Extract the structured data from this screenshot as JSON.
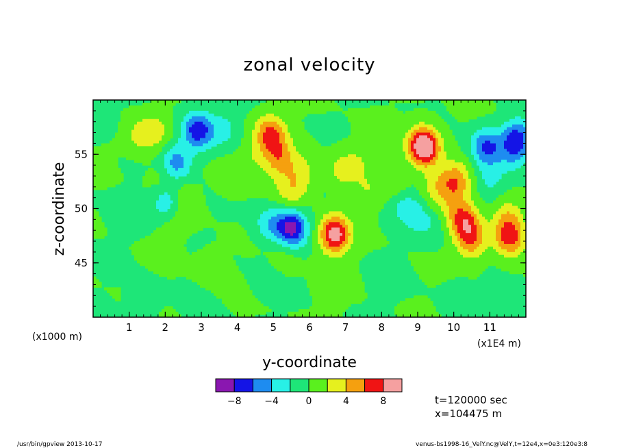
{
  "chart_data": {
    "type": "heatmap",
    "title": "zonal velocity",
    "xlabel": "y-coordinate",
    "ylabel": "z-coordinate",
    "x_scale_note": "(x1E4 m)",
    "y_scale_note": "(x1000 m)",
    "xlim": [
      0.0,
      12.0
    ],
    "ylim": [
      40.0,
      60.0
    ],
    "x_ticks": [
      "1",
      "2",
      "3",
      "4",
      "5",
      "6",
      "7",
      "8",
      "9",
      "10",
      "11"
    ],
    "y_ticks": [
      "45",
      "50",
      "55"
    ],
    "levels": [
      -10,
      -8,
      -6,
      -4,
      -2,
      0,
      2,
      4,
      6,
      8,
      10
    ],
    "colorbar_labels": [
      "-8",
      "-4",
      "0",
      "4",
      "8"
    ],
    "colors": [
      "#8a17b0",
      "#1414e6",
      "#1e8cf0",
      "#28f0e6",
      "#1ee678",
      "#5af01e",
      "#e6f01e",
      "#f5a00f",
      "#f01414",
      "#f5a0a0"
    ],
    "background_color": "#1ee678",
    "features": [
      {
        "y": 0.25,
        "z": 57.5,
        "value": -2.5
      },
      {
        "y": 0.3,
        "z": 56.5,
        "value": 1.2
      },
      {
        "y": 1.3,
        "z": 56.7,
        "value": 2.4
      },
      {
        "y": 1.75,
        "z": 57.3,
        "value": 2.8
      },
      {
        "y": 2.0,
        "z": 52.8,
        "value": 1.8
      },
      {
        "y": 2.1,
        "z": 50.6,
        "value": -5.5
      },
      {
        "y": 2.4,
        "z": 50.8,
        "value": 3.0
      },
      {
        "y": 2.3,
        "z": 54.2,
        "value": -5.5
      },
      {
        "y": 2.9,
        "z": 57.2,
        "value": -7.6
      },
      {
        "y": 2.2,
        "z": 49.0,
        "value": 1.4
      },
      {
        "y": 3.6,
        "z": 57.4,
        "value": -2.5
      },
      {
        "y": 3.8,
        "z": 53.0,
        "value": 1.6
      },
      {
        "y": 4.4,
        "z": 54.5,
        "value": 1.6
      },
      {
        "y": 4.9,
        "z": 56.9,
        "value": 6.2
      },
      {
        "y": 5.2,
        "z": 54.2,
        "value": 3.0
      },
      {
        "y": 5.1,
        "z": 55.2,
        "value": 2.5
      },
      {
        "y": 5.5,
        "z": 51.5,
        "value": 3.0
      },
      {
        "y": 5.8,
        "z": 53.3,
        "value": 2.6
      },
      {
        "y": 4.9,
        "z": 48.6,
        "value": -3.5
      },
      {
        "y": 5.5,
        "z": 48.2,
        "value": -8.6
      },
      {
        "y": 6.7,
        "z": 47.6,
        "value": 9.4
      },
      {
        "y": 6.9,
        "z": 53.5,
        "value": 2.5
      },
      {
        "y": 7.35,
        "z": 54.5,
        "value": 1.6
      },
      {
        "y": 7.6,
        "z": 51.6,
        "value": 1.6
      },
      {
        "y": 8.4,
        "z": 52.2,
        "value": 2.0
      },
      {
        "y": 8.6,
        "z": 50.5,
        "value": -2.6
      },
      {
        "y": 9.1,
        "z": 56.0,
        "value": 3.5
      },
      {
        "y": 9.2,
        "z": 55.6,
        "value": 8.2
      },
      {
        "y": 9.5,
        "z": 52.0,
        "value": 3.0
      },
      {
        "y": 9.95,
        "z": 50.2,
        "value": 2.0
      },
      {
        "y": 10.05,
        "z": 52.5,
        "value": 5.5
      },
      {
        "y": 10.3,
        "z": 48.8,
        "value": 6.2
      },
      {
        "y": 10.5,
        "z": 47.0,
        "value": 5.0
      },
      {
        "y": 11.0,
        "z": 52.8,
        "value": -2.5
      },
      {
        "y": 10.9,
        "z": 55.7,
        "value": -6.3
      },
      {
        "y": 11.5,
        "z": 49.2,
        "value": 3.6
      },
      {
        "y": 11.55,
        "z": 47.3,
        "value": 6.5
      },
      {
        "y": 11.6,
        "z": 55.0,
        "value": -2.5
      },
      {
        "y": 11.75,
        "z": 56.5,
        "value": -6.5
      },
      {
        "y": 9.0,
        "z": 49.2,
        "value": -2.2
      },
      {
        "y": 9.5,
        "z": 48.6,
        "value": -1.3
      },
      {
        "y": 1.0,
        "z": 49.5,
        "value": -1.5
      },
      {
        "y": 4.8,
        "z": 43.5,
        "value": -1.2
      },
      {
        "y": 6.5,
        "z": 43.0,
        "value": 1.0
      },
      {
        "y": 5.3,
        "z": 45.5,
        "value": 1.2
      },
      {
        "y": 8.1,
        "z": 43.5,
        "value": -1.2
      },
      {
        "y": 10.1,
        "z": 41.5,
        "value": -1.3
      },
      {
        "y": 1.4,
        "z": 41.5,
        "value": -1.2
      },
      {
        "y": 3.3,
        "z": 45.0,
        "value": 1.0
      },
      {
        "y": 11.6,
        "z": 41.0,
        "value": -1.2
      }
    ]
  },
  "annotations": {
    "time": "t=120000 sec",
    "position": "x=104475 m"
  },
  "footer": {
    "left": "/usr/bin/gpview  2013-10-17",
    "right": "venus-bs1998-16_VelY.nc@VelY,t=12e4,x=0e3:120e3:8"
  }
}
